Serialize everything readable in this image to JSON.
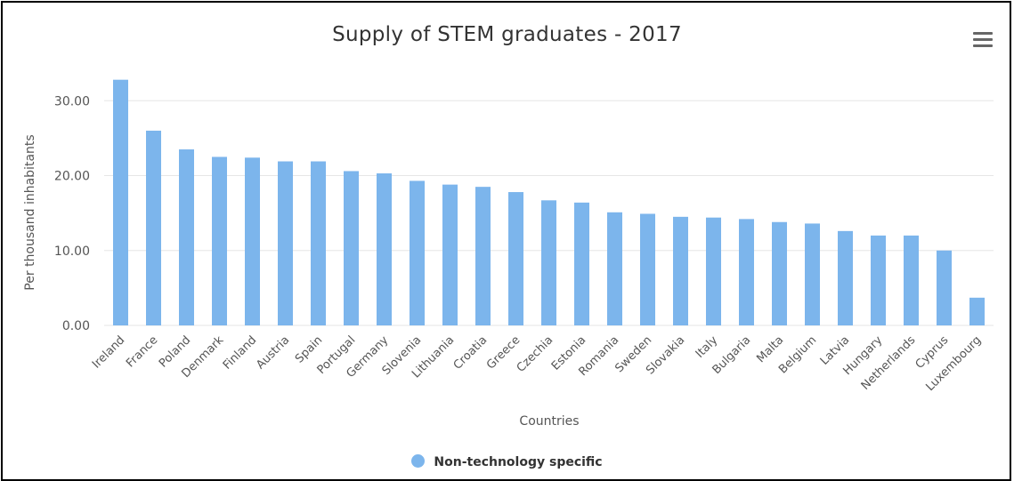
{
  "chart_data": {
    "type": "bar",
    "title": "Supply of STEM graduates - 2017",
    "xlabel": "Countries",
    "ylabel": "Per thousand inhabitants",
    "ylim": [
      0,
      33
    ],
    "yticks": [
      "0.00",
      "10.00",
      "20.00",
      "30.00"
    ],
    "grid": true,
    "legend_position": "bottom",
    "categories": [
      "Ireland",
      "France",
      "Poland",
      "Denmark",
      "Finland",
      "Austria",
      "Spain",
      "Portugal",
      "Germany",
      "Slovenia",
      "Lithuania",
      "Croatia",
      "Greece",
      "Czechia",
      "Estonia",
      "Romania",
      "Sweden",
      "Slovakia",
      "Italy",
      "Bulgaria",
      "Malta",
      "Belgium",
      "Latvia",
      "Hungary",
      "Netherlands",
      "Cyprus",
      "Luxembourg"
    ],
    "series": [
      {
        "name": "Non-technology specific",
        "color": "#7cb5ec",
        "values": [
          32.8,
          26.0,
          23.5,
          22.5,
          22.4,
          21.9,
          21.9,
          20.6,
          20.3,
          19.3,
          18.8,
          18.5,
          17.8,
          16.7,
          16.4,
          15.1,
          14.9,
          14.5,
          14.4,
          14.2,
          13.8,
          13.6,
          12.6,
          12.0,
          12.0,
          10.0,
          3.7
        ]
      }
    ]
  },
  "menu_icon": "hamburger-menu-icon"
}
